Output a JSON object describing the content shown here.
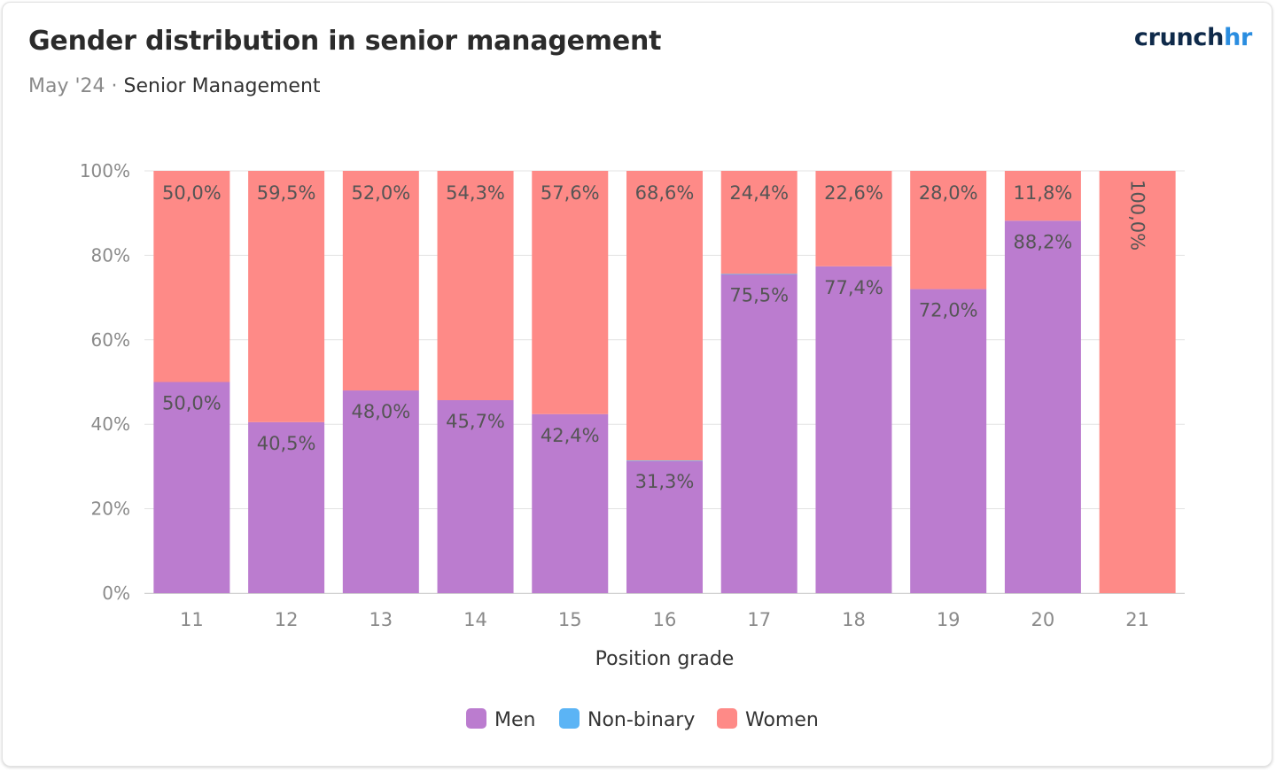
{
  "header": {
    "title": "Gender distribution in senior management",
    "subtitle_date": "May '24",
    "subtitle_separator": "·",
    "subtitle_scope": "Senior Management"
  },
  "brand": {
    "logo_part1": "crunch",
    "logo_part2": "hr"
  },
  "colors": {
    "men": "#bb7ccf",
    "nonbinary": "#5bb4f5",
    "women": "#fe8a87",
    "grid": "#e3e3e3",
    "axis_text": "#8a8a8a",
    "label_text": "#555555"
  },
  "chart_data": {
    "type": "bar",
    "stacked": true,
    "categories": [
      "11",
      "12",
      "13",
      "14",
      "15",
      "16",
      "17",
      "18",
      "19",
      "20",
      "21"
    ],
    "series": [
      {
        "name": "Men",
        "values": [
          50.0,
          40.5,
          48.0,
          45.7,
          42.4,
          31.3,
          75.5,
          77.4,
          72.0,
          88.2,
          0
        ],
        "labels": [
          "50,0%",
          "40,5%",
          "48,0%",
          "45,7%",
          "42,4%",
          "31,3%",
          "75,5%",
          "77,4%",
          "72,0%",
          "88,2%",
          ""
        ]
      },
      {
        "name": "Non-binary",
        "values": [
          0,
          0,
          0,
          0,
          0,
          0.1,
          0.1,
          0,
          0,
          0,
          0
        ],
        "labels": [
          "",
          "",
          "",
          "",
          "",
          "",
          "",
          "",
          "",
          "",
          ""
        ]
      },
      {
        "name": "Women",
        "values": [
          50.0,
          59.5,
          52.0,
          54.3,
          57.6,
          68.6,
          24.4,
          22.6,
          28.0,
          11.8,
          100.0
        ],
        "labels": [
          "50,0%",
          "59,5%",
          "52,0%",
          "54,3%",
          "57,6%",
          "68,6%",
          "24,4%",
          "22,6%",
          "28,0%",
          "11,8%",
          "100,0%"
        ]
      }
    ],
    "title": "",
    "xlabel": "Position grade",
    "ylabel": "",
    "ylim": [
      0,
      100
    ],
    "yticks": [
      0,
      20,
      40,
      60,
      80,
      100
    ],
    "ytick_labels": [
      "0%",
      "20%",
      "40%",
      "60%",
      "80%",
      "100%"
    ],
    "grid": true,
    "legend_position": "bottom-center"
  }
}
